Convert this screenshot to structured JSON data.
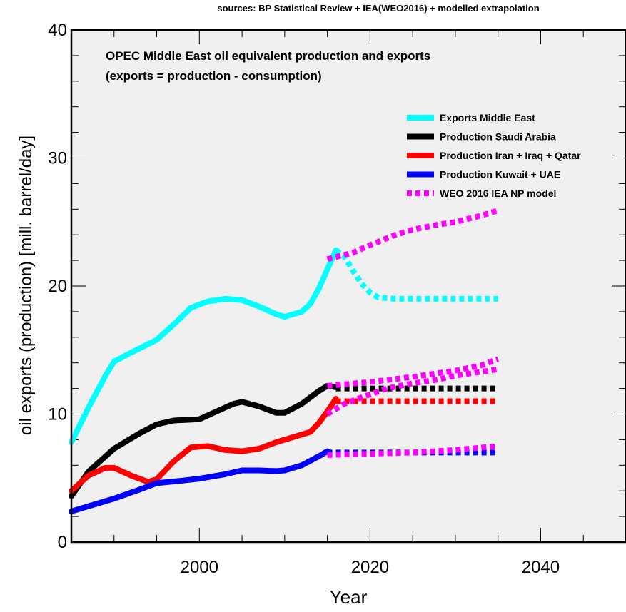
{
  "chart_data": {
    "type": "line",
    "source_note": "sources: BP Statistical Review + IEA(WEO2016) + modelled extrapolation",
    "title_line1": "OPEC Middle East oil equivalent production and exports",
    "title_line2": "(exports = production - consumption)",
    "xlabel": "Year",
    "ylabel": "oil exports (production) [mill. barrel/day]",
    "xlim": [
      1985,
      2050
    ],
    "ylim": [
      0,
      40
    ],
    "x_ticks": [
      2000,
      2020,
      2040
    ],
    "y_ticks": [
      0,
      10,
      20,
      30,
      40
    ],
    "grid": false,
    "legend_position": "top-right",
    "background": "#f0f0f0",
    "series": [
      {
        "name": "Exports Middle East",
        "color": "#00ffff",
        "style": "solid",
        "points": [
          [
            1985,
            7.8
          ],
          [
            1987,
            10.5
          ],
          [
            1989,
            13
          ],
          [
            1990,
            14.1
          ],
          [
            1992,
            14.8
          ],
          [
            1995,
            15.8
          ],
          [
            1997,
            17
          ],
          [
            1999,
            18.3
          ],
          [
            2001,
            18.8
          ],
          [
            2003,
            19
          ],
          [
            2005,
            18.9
          ],
          [
            2007,
            18.4
          ],
          [
            2009,
            17.8
          ],
          [
            2010,
            17.6
          ],
          [
            2012,
            18
          ],
          [
            2013,
            18.6
          ],
          [
            2014,
            19.8
          ],
          [
            2015,
            21.3
          ],
          [
            2016,
            22.8
          ]
        ]
      },
      {
        "name": "Exports Middle East (extrapolation)",
        "color": "#00ffff",
        "style": "dotted",
        "points": [
          [
            2016,
            22.8
          ],
          [
            2017,
            22.3
          ],
          [
            2018,
            21.2
          ],
          [
            2019,
            20.2
          ],
          [
            2020,
            19.5
          ],
          [
            2021,
            19.1
          ],
          [
            2023,
            19
          ],
          [
            2035,
            19
          ]
        ]
      },
      {
        "name": "Production Saudi Arabia",
        "color": "#000000",
        "style": "solid",
        "points": [
          [
            1985,
            3.6
          ],
          [
            1987,
            5.5
          ],
          [
            1990,
            7.3
          ],
          [
            1993,
            8.5
          ],
          [
            1995,
            9.2
          ],
          [
            1997,
            9.5
          ],
          [
            2000,
            9.6
          ],
          [
            2002,
            10.2
          ],
          [
            2004,
            10.8
          ],
          [
            2005,
            10.95
          ],
          [
            2007,
            10.6
          ],
          [
            2009,
            10.1
          ],
          [
            2010,
            10.1
          ],
          [
            2012,
            10.8
          ],
          [
            2014,
            11.8
          ],
          [
            2015,
            12.2
          ],
          [
            2016,
            12.1
          ]
        ]
      },
      {
        "name": "Production Saudi Arabia (extrapolation)",
        "color": "#000000",
        "style": "dotted",
        "points": [
          [
            2016,
            12
          ],
          [
            2035,
            12
          ]
        ]
      },
      {
        "name": "Production Iran + Iraq + Qatar",
        "color": "#ff0000",
        "style": "solid",
        "points": [
          [
            1985,
            4
          ],
          [
            1987,
            5.2
          ],
          [
            1989,
            5.8
          ],
          [
            1990,
            5.8
          ],
          [
            1992,
            5.2
          ],
          [
            1994,
            4.7
          ],
          [
            1995,
            4.9
          ],
          [
            1997,
            6.3
          ],
          [
            1999,
            7.4
          ],
          [
            2001,
            7.5
          ],
          [
            2003,
            7.2
          ],
          [
            2005,
            7.1
          ],
          [
            2007,
            7.3
          ],
          [
            2009,
            7.8
          ],
          [
            2011,
            8.2
          ],
          [
            2013,
            8.6
          ],
          [
            2014,
            9.3
          ],
          [
            2015,
            10.2
          ],
          [
            2016,
            11.2
          ]
        ]
      },
      {
        "name": "Production Iran + Iraq + Qatar (extrapolation)",
        "color": "#ff0000",
        "style": "dotted",
        "points": [
          [
            2016,
            11
          ],
          [
            2035,
            11
          ]
        ]
      },
      {
        "name": "Production Kuwait + UAE",
        "color": "#0000ff",
        "style": "solid",
        "points": [
          [
            1985,
            2.4
          ],
          [
            1987,
            2.8
          ],
          [
            1990,
            3.4
          ],
          [
            1993,
            4.1
          ],
          [
            1995,
            4.6
          ],
          [
            1998,
            4.8
          ],
          [
            2000,
            4.95
          ],
          [
            2003,
            5.3
          ],
          [
            2005,
            5.6
          ],
          [
            2007,
            5.6
          ],
          [
            2009,
            5.55
          ],
          [
            2010,
            5.6
          ],
          [
            2012,
            6.0
          ],
          [
            2014,
            6.7
          ],
          [
            2015,
            7.1
          ]
        ]
      },
      {
        "name": "Production Kuwait + UAE (extrapolation)",
        "color": "#0000ff",
        "style": "dotted",
        "points": [
          [
            2015,
            7
          ],
          [
            2035,
            7
          ]
        ]
      },
      {
        "name": "WEO 2016 IEA NP model",
        "color": "#ff00ff",
        "style": "dotted",
        "points": [
          [
            2015,
            22.1
          ],
          [
            2018,
            22.6
          ],
          [
            2020,
            23.2
          ],
          [
            2023,
            24.0
          ],
          [
            2025,
            24.4
          ],
          [
            2028,
            24.8
          ],
          [
            2030,
            25.0
          ],
          [
            2033,
            25.5
          ],
          [
            2035,
            25.9
          ]
        ]
      },
      {
        "name": "WEO 2016 IEA NP model (Saudi Arabia)",
        "color": "#ff00ff",
        "style": "dotted",
        "points": [
          [
            2015,
            12.2
          ],
          [
            2020,
            12.5
          ],
          [
            2025,
            12.9
          ],
          [
            2030,
            13.4
          ],
          [
            2033,
            13.8
          ],
          [
            2035,
            14.3
          ]
        ]
      },
      {
        "name": "WEO 2016 IEA NP model (Iran + Iraq + Qatar)",
        "color": "#ff00ff",
        "style": "dotted",
        "points": [
          [
            2015,
            10
          ],
          [
            2017,
            10.8
          ],
          [
            2019,
            11.3
          ],
          [
            2022,
            12
          ],
          [
            2025,
            12.4
          ],
          [
            2028,
            12.7
          ],
          [
            2030,
            13
          ],
          [
            2035,
            13.5
          ]
        ]
      },
      {
        "name": "WEO 2016 IEA NP model (Kuwait + UAE)",
        "color": "#ff00ff",
        "style": "dotted",
        "points": [
          [
            2015,
            6.8
          ],
          [
            2020,
            6.9
          ],
          [
            2025,
            7.0
          ],
          [
            2030,
            7.2
          ],
          [
            2035,
            7.5
          ]
        ]
      }
    ],
    "legend": [
      {
        "label": "Exports Middle East",
        "color": "#00ffff",
        "style": "solid"
      },
      {
        "label": "Production Saudi Arabia",
        "color": "#000000",
        "style": "solid"
      },
      {
        "label": "Production Iran + Iraq + Qatar",
        "color": "#ff0000",
        "style": "solid"
      },
      {
        "label": "Production Kuwait + UAE",
        "color": "#0000ff",
        "style": "solid"
      },
      {
        "label": "WEO 2016 IEA NP model",
        "color": "#ff00ff",
        "style": "dotted"
      }
    ]
  }
}
